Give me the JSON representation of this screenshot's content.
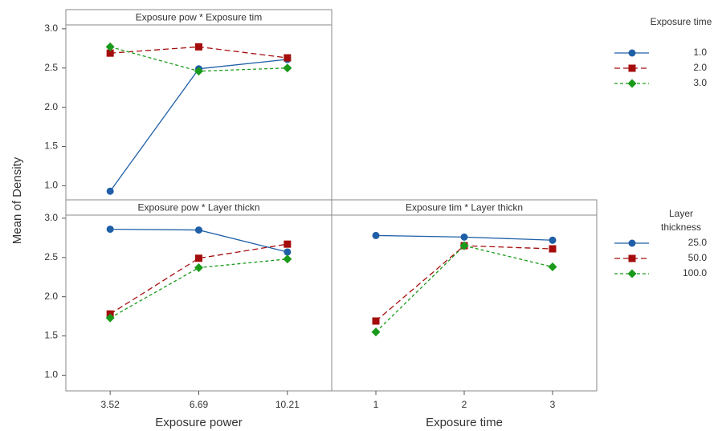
{
  "chart_data": [
    {
      "type": "line",
      "title": "Exposure pow * Exposure tim",
      "y_label": "Mean of Density",
      "ylim": [
        0.82,
        3.05
      ],
      "yticks": [
        {
          "value": 1,
          "label": "1.0"
        },
        {
          "value": 1.5,
          "label": "1.5"
        },
        {
          "value": 2,
          "label": "2.0"
        },
        {
          "value": 2.5,
          "label": "2.5"
        },
        {
          "value": 3,
          "label": "3.0"
        }
      ],
      "legend_title": "Exposure time",
      "series": [
        {
          "name": "1.0",
          "color": "#1f5fa8",
          "marker": "circle",
          "linestyle": "solid",
          "values": [
            0.93,
            2.49,
            2.61
          ]
        },
        {
          "name": "2.0",
          "color": "#a50d0d",
          "marker": "square",
          "linestyle": "dashed",
          "values": [
            2.69,
            2.77,
            2.63
          ]
        },
        {
          "name": "3.0",
          "color": "#1a9a1a",
          "marker": "diamond",
          "linestyle": "dotted",
          "values": [
            2.77,
            2.46,
            2.5
          ]
        }
      ]
    },
    {
      "type": "line",
      "title": "Exposure pow * Layer thickn",
      "x_label": "Exposure power",
      "categories": [
        "3.52",
        "6.69",
        "10.21"
      ],
      "ylim": [
        0.8,
        3.04
      ],
      "yticks": [
        {
          "value": 1,
          "label": "1.0"
        },
        {
          "value": 1.5,
          "label": "1.5"
        },
        {
          "value": 2,
          "label": "2.0"
        },
        {
          "value": 2.5,
          "label": "2.5"
        },
        {
          "value": 3,
          "label": "3.0"
        }
      ],
      "legend_title": "Layer thickness",
      "series": [
        {
          "name": "25.0",
          "color": "#1f5fa8",
          "marker": "circle",
          "linestyle": "solid",
          "values": [
            2.86,
            2.85,
            2.57
          ]
        },
        {
          "name": "50.0",
          "color": "#a50d0d",
          "marker": "square",
          "linestyle": "dashed",
          "values": [
            1.78,
            2.49,
            2.67
          ]
        },
        {
          "name": "100.0",
          "color": "#1a9a1a",
          "marker": "diamond",
          "linestyle": "dotted",
          "values": [
            1.73,
            2.37,
            2.48
          ]
        }
      ]
    },
    {
      "type": "line",
      "title": "Exposure tim * Layer thickn",
      "x_label": "Exposure time",
      "categories": [
        "1",
        "2",
        "3"
      ],
      "ylim": [
        0.8,
        3.04
      ],
      "series": [
        {
          "color": "#1f5fa8",
          "marker": "circle",
          "linestyle": "solid",
          "values": [
            2.78,
            2.76,
            2.72
          ]
        },
        {
          "color": "#a50d0d",
          "marker": "square",
          "linestyle": "dashed",
          "values": [
            1.69,
            2.65,
            2.61
          ]
        },
        {
          "color": "#1a9a1a",
          "marker": "diamond",
          "linestyle": "dotted",
          "values": [
            1.55,
            2.65,
            2.38
          ]
        }
      ]
    }
  ]
}
